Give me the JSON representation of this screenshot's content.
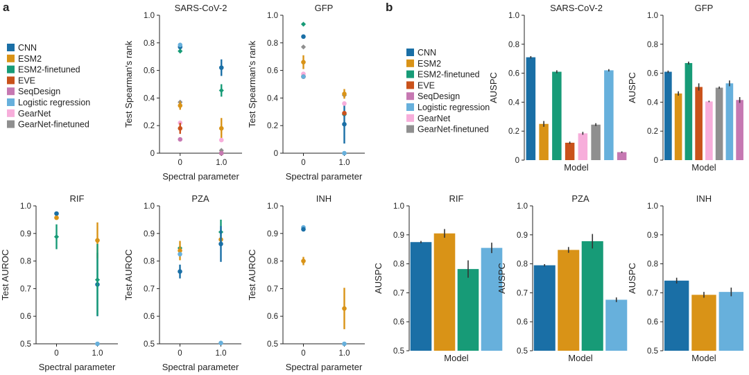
{
  "panel_labels": [
    "a",
    "b"
  ],
  "colors": {
    "CNN": "#1a6fa6",
    "ESM2": "#d99317",
    "ESM2-finetuned": "#179b77",
    "EVE": "#c9521b",
    "SeqDesign": "#c678b2",
    "Logistic regression": "#67b0dc",
    "GearNet": "#f7aedb",
    "GearNet-finetuned": "#8f8f8f"
  },
  "legends": {
    "a": [
      "CNN",
      "ESM2",
      "ESM2-finetuned",
      "EVE",
      "SeqDesign",
      "Logistic regression",
      "GearNet",
      "GearNet-finetuned"
    ],
    "b": [
      "CNN",
      "ESM2",
      "ESM2-finetuned",
      "EVE",
      "SeqDesign",
      "Logistic regression",
      "GearNet",
      "GearNet-finetuned"
    ]
  },
  "chart_data": [
    {
      "id": "a-sars",
      "type": "scatter",
      "title": "SARS-CoV-2",
      "xlabel": "Spectral parameter",
      "ylabel": "Test Spearman's rank",
      "categories": [
        "0",
        "1.0"
      ],
      "ylim": [
        0,
        1.0
      ],
      "yticks": [
        "0",
        "0.2",
        "0.4",
        "0.6",
        "0.8",
        "1.0"
      ],
      "series": [
        {
          "name": "CNN",
          "values": [
            0.77,
            0.62
          ],
          "err": [
            0.0,
            0.06
          ]
        },
        {
          "name": "Logistic regression",
          "values": [
            0.785,
            0.0
          ],
          "err": [
            0.0,
            0.0
          ]
        },
        {
          "name": "ESM2-finetuned",
          "values": [
            0.74,
            0.455
          ],
          "err": [
            0.0,
            0.045
          ]
        },
        {
          "name": "GearNet-finetuned",
          "values": [
            0.37,
            0.02
          ],
          "err": [
            0.0,
            0.0
          ]
        },
        {
          "name": "ESM2",
          "values": [
            0.345,
            0.18
          ],
          "err": [
            0.03,
            0.075
          ]
        },
        {
          "name": "GearNet",
          "values": [
            0.22,
            0.095
          ],
          "err": [
            0.0,
            0.0
          ]
        },
        {
          "name": "EVE",
          "values": [
            0.18,
            0.0
          ],
          "err": [
            0.04,
            0.0
          ]
        },
        {
          "name": "SeqDesign",
          "values": [
            0.1,
            0.0
          ],
          "err": [
            0.0,
            0.0
          ]
        }
      ]
    },
    {
      "id": "a-gfp",
      "type": "scatter",
      "title": "GFP",
      "xlabel": "Spectral parameter",
      "ylabel": "Test Spearman's rank",
      "categories": [
        "0",
        "1.0"
      ],
      "ylim": [
        0,
        1.0
      ],
      "yticks": [
        "0",
        "0.2",
        "0.4",
        "0.6",
        "0.8",
        "1.0"
      ],
      "series": [
        {
          "name": "ESM2-finetuned",
          "values": [
            0.935,
            0.28
          ],
          "err": [
            0.0,
            0.0
          ]
        },
        {
          "name": "CNN",
          "values": [
            0.845,
            0.21
          ],
          "err": [
            0.0,
            0.14
          ]
        },
        {
          "name": "GearNet-finetuned",
          "values": [
            0.77,
            0.42
          ],
          "err": [
            0.0,
            0.0
          ]
        },
        {
          "name": "ESM2",
          "values": [
            0.66,
            0.43
          ],
          "err": [
            0.05,
            0.035
          ]
        },
        {
          "name": "GearNet",
          "values": [
            0.575,
            0.36
          ],
          "err": [
            0.0,
            0.0
          ]
        },
        {
          "name": "SeqDesign",
          "values": [
            0.555,
            0.29
          ],
          "err": [
            0.0,
            0.0
          ]
        },
        {
          "name": "EVE",
          "values": [
            0.555,
            0.29
          ],
          "err": [
            0.0,
            0.0
          ]
        },
        {
          "name": "Logistic regression",
          "values": [
            0.555,
            0.0
          ],
          "err": [
            0.0,
            0.0
          ]
        }
      ]
    },
    {
      "id": "a-rif",
      "type": "scatter",
      "title": "RIF",
      "xlabel": "Spectral parameter",
      "ylabel": "Test AUROC",
      "categories": [
        "0",
        "1.0"
      ],
      "ylim": [
        0.5,
        1.0
      ],
      "yticks": [
        "0.5",
        "0.6",
        "0.7",
        "0.8",
        "0.9",
        "1.0"
      ],
      "series": [
        {
          "name": "CNN",
          "values": [
            0.972,
            0.715
          ],
          "err": [
            0.0,
            0.115
          ]
        },
        {
          "name": "ESM2",
          "values": [
            0.957,
            0.875
          ],
          "err": [
            0.0,
            0.065
          ]
        },
        {
          "name": "ESM2-finetuned",
          "values": [
            0.888,
            0.732
          ],
          "err": [
            0.045,
            0.13
          ]
        },
        {
          "name": "Logistic regression",
          "values": [
            0.0,
            0.5
          ],
          "err": [
            0.0,
            0.0
          ]
        }
      ]
    },
    {
      "id": "a-pza",
      "type": "scatter",
      "title": "PZA",
      "xlabel": "Spectral parameter",
      "ylabel": "Test AUROC",
      "categories": [
        "0",
        "1.0"
      ],
      "ylim": [
        0.5,
        1.0
      ],
      "yticks": [
        "0.5",
        "0.6",
        "0.7",
        "0.8",
        "0.9",
        "1.0"
      ],
      "series": [
        {
          "name": "ESM2-finetuned",
          "values": [
            0.847,
            0.905
          ],
          "err": [
            0.0,
            0.045
          ]
        },
        {
          "name": "ESM2",
          "values": [
            0.838,
            0.878
          ],
          "err": [
            0.035,
            0.0
          ]
        },
        {
          "name": "Logistic regression",
          "values": [
            0.825,
            0.503
          ],
          "err": [
            0.0,
            0.0
          ]
        },
        {
          "name": "CNN",
          "values": [
            0.762,
            0.862
          ],
          "err": [
            0.025,
            0.065
          ]
        }
      ]
    },
    {
      "id": "a-inh",
      "type": "scatter",
      "title": "INH",
      "xlabel": "Spectral parameter",
      "ylabel": "Test AUROC",
      "categories": [
        "0",
        "1.0"
      ],
      "ylim": [
        0.5,
        1.0
      ],
      "yticks": [
        "0.5",
        "0.6",
        "0.7",
        "0.8",
        "0.9",
        "1.0"
      ],
      "series": [
        {
          "name": "Logistic regression",
          "values": [
            0.922,
            0.5
          ],
          "err": [
            0.0,
            0.0
          ]
        },
        {
          "name": "CNN",
          "values": [
            0.915,
            0.0
          ],
          "err": [
            0.0,
            0.0
          ]
        },
        {
          "name": "ESM2",
          "values": [
            0.8,
            0.628
          ],
          "err": [
            0.015,
            0.075
          ]
        }
      ]
    },
    {
      "id": "b-sars",
      "type": "bar",
      "title": "SARS-CoV-2",
      "xlabel": "Model",
      "ylabel": "AUSPC",
      "ylim": [
        0,
        1.0
      ],
      "yticks": [
        "0",
        "0.2",
        "0.4",
        "0.6",
        "0.8",
        "1.0"
      ],
      "categories": [
        "CNN",
        "ESM2",
        "ESM2-finetuned",
        "EVE",
        "GearNet",
        "GearNet-finetuned",
        "Logistic regression",
        "SeqDesign"
      ],
      "values": [
        0.71,
        0.25,
        0.61,
        0.12,
        0.185,
        0.245,
        0.62,
        0.055
      ],
      "err": [
        0.008,
        0.02,
        0.01,
        0.008,
        0.01,
        0.01,
        0.008,
        0.005
      ]
    },
    {
      "id": "b-gfp",
      "type": "bar",
      "title": "GFP",
      "xlabel": "Model",
      "ylabel": "AUSPC",
      "ylim": [
        0,
        1.0
      ],
      "yticks": [
        "0",
        "0.2",
        "0.4",
        "0.6",
        "0.8",
        "1.0"
      ],
      "categories": [
        "CNN",
        "ESM2",
        "ESM2-finetuned",
        "EVE",
        "GearNet",
        "GearNet-finetuned",
        "Logistic regression",
        "SeqDesign"
      ],
      "values": [
        0.61,
        0.46,
        0.67,
        0.505,
        0.405,
        0.5,
        0.53,
        0.415
      ],
      "err": [
        0.008,
        0.015,
        0.01,
        0.025,
        0.005,
        0.008,
        0.02,
        0.02
      ]
    },
    {
      "id": "b-rif",
      "type": "bar",
      "title": "RIF",
      "xlabel": "Model",
      "ylabel": "AUSPC",
      "ylim": [
        0.5,
        1.0
      ],
      "yticks": [
        "0.5",
        "0.6",
        "0.7",
        "0.8",
        "0.9",
        "1.0"
      ],
      "categories": [
        "CNN",
        "ESM2",
        "ESM2-finetuned",
        "Logistic regression"
      ],
      "values": [
        0.875,
        0.905,
        0.782,
        0.855
      ],
      "err": [
        0.004,
        0.015,
        0.03,
        0.018
      ]
    },
    {
      "id": "b-pza",
      "type": "bar",
      "title": "PZA",
      "xlabel": "Model",
      "ylabel": "AUSPC",
      "ylim": [
        0.5,
        1.0
      ],
      "yticks": [
        "0.5",
        "0.6",
        "0.7",
        "0.8",
        "0.9",
        "1.0"
      ],
      "categories": [
        "CNN",
        "ESM2",
        "ESM2-finetuned",
        "Logistic regression"
      ],
      "values": [
        0.795,
        0.848,
        0.878,
        0.676
      ],
      "err": [
        0.004,
        0.01,
        0.025,
        0.008
      ]
    },
    {
      "id": "b-inh",
      "type": "bar",
      "title": "INH",
      "xlabel": "Model",
      "ylabel": "AUSPC",
      "ylim": [
        0.5,
        1.0
      ],
      "yticks": [
        "0.5",
        "0.6",
        "0.7",
        "0.8",
        "0.9",
        "1.0"
      ],
      "categories": [
        "CNN",
        "ESM2",
        "Logistic regression"
      ],
      "values": [
        0.742,
        0.693,
        0.703
      ],
      "err": [
        0.01,
        0.01,
        0.015
      ]
    }
  ]
}
